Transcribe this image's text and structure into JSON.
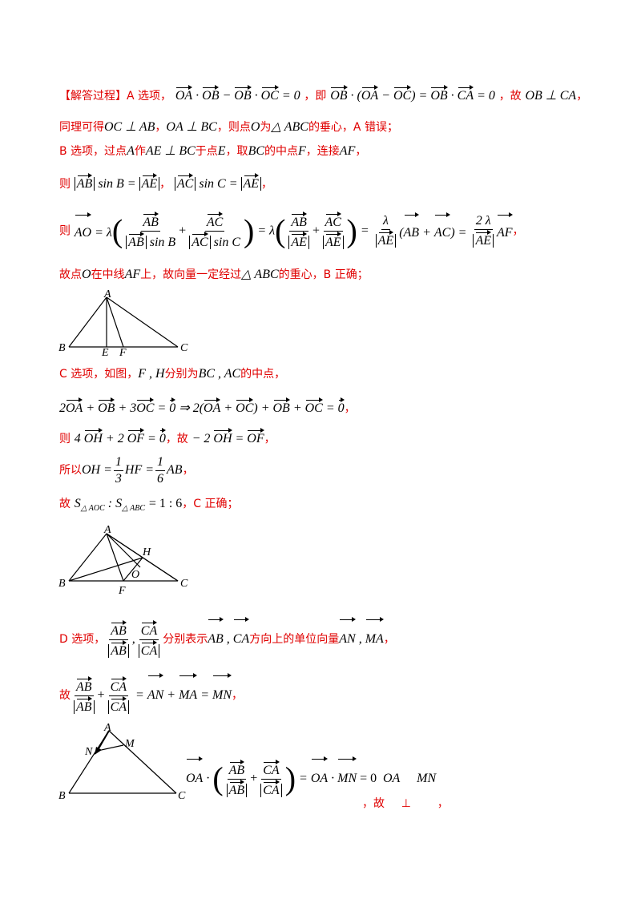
{
  "s1": {
    "label": "【解答过程】A 选项，",
    "eq": " = 0",
    "mid": "，即",
    "eq2": " = 0",
    "end": "，故",
    "concl": "OB ⊥ CA",
    "comma": "，"
  },
  "s2": {
    "a": "同理可得",
    "b": "OC ⊥ AB",
    "c": "，",
    "d": "OA ⊥ BC",
    "e": "，则点",
    "f": "O",
    "g": "为",
    "h": "△ ABC",
    "i": "的垂心，A 错误；"
  },
  "s3": {
    "a": "B 选项，过点",
    "b": "A",
    "c": "作",
    "d": "AE ⊥ BC",
    "e": "于点",
    "f": "E",
    "g": "，取",
    "h": "BC",
    "i": "的中点",
    "j": "F",
    "k": "，连接",
    "l": "AF",
    "m": "，"
  },
  "s4": {
    "a": "则",
    "sinB": "sin B =",
    "comma": "，",
    "sinC": "sin C =",
    "end": "，"
  },
  "s5": {
    "a": "则",
    "end": "，"
  },
  "s6": {
    "a": "故点",
    "b": "O",
    "c": "在中线",
    "d": "AF",
    "e": "上，故向量一定经过",
    "f": "△ ABC",
    "g": "的重心，B 正确；"
  },
  "s7": {
    "a": "C 选项，如图，",
    "b": "F , H",
    "c": "分别为",
    "d": "BC , AC",
    "e": "的中点，"
  },
  "s8": {
    "end": "，"
  },
  "s9": {
    "a": "则",
    "mid": "，故",
    "end": "，"
  },
  "s10": {
    "a": "所以",
    "b": "OH =",
    "c": "HF =",
    "d": "AB",
    "e": "，"
  },
  "s11": {
    "a": "故",
    "b": "= 1 : 6",
    "c": "，C 正确；"
  },
  "s12": {
    "a": "D 选项，",
    "b": "分别表示",
    "c": "方向上的单位向量",
    "end": "，"
  },
  "s13": {
    "a": "故",
    "end": "，"
  },
  "s14": {
    "eq": "= 0",
    "oa": "OA",
    "mn": "MN",
    "gu": "，故",
    "perp": "⊥",
    "end": "，"
  },
  "figures": {
    "fig1": {
      "A": "A",
      "B": "B",
      "C": "C",
      "E": "E",
      "F": "F"
    },
    "fig2": {
      "A": "A",
      "B": "B",
      "C": "C",
      "F": "F",
      "H": "H",
      "O": "O"
    },
    "fig3": {
      "A": "A",
      "B": "B",
      "C": "C",
      "N": "N",
      "M": "M"
    }
  }
}
